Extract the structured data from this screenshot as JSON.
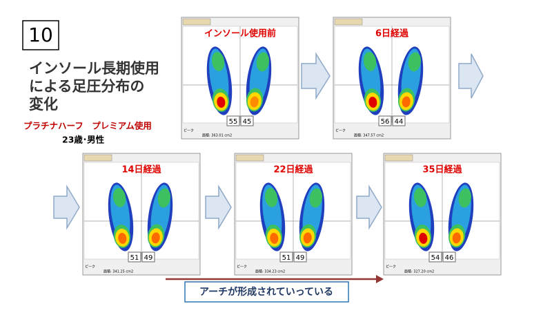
{
  "slide_number": "10",
  "title_lines": [
    "インソール長期使用",
    "による足圧分布の",
    "変化"
  ],
  "product": "プラチナハーフ　プレミアム使用",
  "subject": "23歳･男性",
  "panels": [
    {
      "label": "インソール使用前",
      "left": "55",
      "right": "45",
      "area": "面積: 363.01 cm2"
    },
    {
      "label": "6日経過",
      "left": "56",
      "right": "44",
      "area": "面積: 347.57 cm2"
    },
    {
      "label": "14日経過",
      "left": "51",
      "right": "49",
      "area": "面積: 341.25 cm2"
    },
    {
      "label": "22日経過",
      "left": "51",
      "right": "49",
      "area": "面積: 334.23 cm2"
    },
    {
      "label": "35日経過",
      "left": "54",
      "right": "46",
      "area": "面積: 327.20 cm2"
    }
  ],
  "status_label": "ピーク",
  "caption": "アーチが形成されていっている"
}
